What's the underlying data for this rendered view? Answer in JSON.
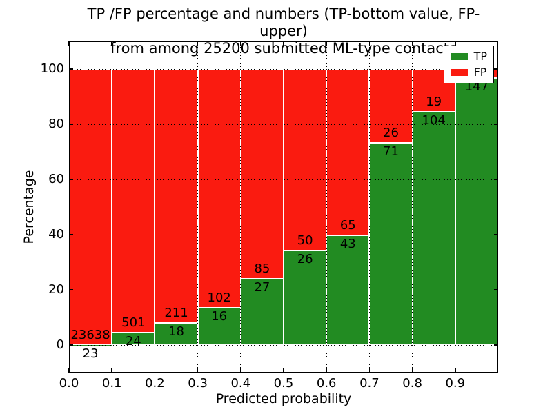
{
  "figure": {
    "title_line1": "TP /FP percentage and numbers (TP-bottom value, FP-upper)",
    "title_line2": "from among 25200 submitted ML-type contacts",
    "xlabel": "Predicted probability",
    "ylabel": "Percentage"
  },
  "legend": {
    "items": [
      {
        "label": "TP",
        "color": "#228b22"
      },
      {
        "label": "FP",
        "color": "#fa1b10"
      }
    ]
  },
  "chart_data": {
    "type": "bar",
    "stacked": true,
    "title": "TP /FP percentage and numbers (TP-bottom value, FP-upper) from among 25200 submitted ML-type contacts",
    "xlabel": "Predicted probability",
    "ylabel": "Percentage",
    "xlim": [
      0.0,
      1.0
    ],
    "ylim": [
      -10,
      110
    ],
    "x_tick_labels": [
      "0.0",
      "0.1",
      "0.2",
      "0.3",
      "0.4",
      "0.5",
      "0.6",
      "0.7",
      "0.8",
      "0.9"
    ],
    "y_tick_labels": [
      "0",
      "20",
      "40",
      "60",
      "80",
      "100"
    ],
    "grid": "dotted, both axes, drawn above bars",
    "legend_position": "upper right",
    "colors": {
      "tp": "#228b22",
      "fp": "#fa1b10",
      "bar_edge": "#ffffff"
    },
    "series_note": "Each bar stacks to 100%: TP (green, bottom) + FP (red, top). tp_pct estimated from pixel heights.",
    "bins": [
      {
        "range": "0.0-0.1",
        "tp_count": 23,
        "fp_count": 23638,
        "tp_pct": 0.1,
        "tp_label": "23",
        "fp_label": "23638"
      },
      {
        "range": "0.1-0.2",
        "tp_count": 24,
        "fp_count": 501,
        "tp_pct": 4.6,
        "tp_label": "24",
        "fp_label": "501"
      },
      {
        "range": "0.2-0.3",
        "tp_count": 18,
        "fp_count": 211,
        "tp_pct": 7.9,
        "tp_label": "18",
        "fp_label": "211"
      },
      {
        "range": "0.3-0.4",
        "tp_count": 16,
        "fp_count": 102,
        "tp_pct": 13.6,
        "tp_label": "16",
        "fp_label": "102"
      },
      {
        "range": "0.4-0.5",
        "tp_count": 27,
        "fp_count": 85,
        "tp_pct": 24.1,
        "tp_label": "27",
        "fp_label": "85"
      },
      {
        "range": "0.5-0.6",
        "tp_count": 26,
        "fp_count": 50,
        "tp_pct": 34.2,
        "tp_label": "26",
        "fp_label": "50"
      },
      {
        "range": "0.6-0.7",
        "tp_count": 43,
        "fp_count": 65,
        "tp_pct": 39.8,
        "tp_label": "43",
        "fp_label": "65"
      },
      {
        "range": "0.7-0.8",
        "tp_count": 71,
        "fp_count": 26,
        "tp_pct": 73.2,
        "tp_label": "71",
        "fp_label": "26"
      },
      {
        "range": "0.8-0.9",
        "tp_count": 104,
        "fp_count": 19,
        "tp_pct": 84.6,
        "tp_label": "104",
        "fp_label": "19"
      },
      {
        "range": "0.9-1.0",
        "tp_count": 147,
        "fp_count": null,
        "tp_pct": 96.7,
        "tp_label": "147",
        "fp_label": ""
      }
    ]
  }
}
